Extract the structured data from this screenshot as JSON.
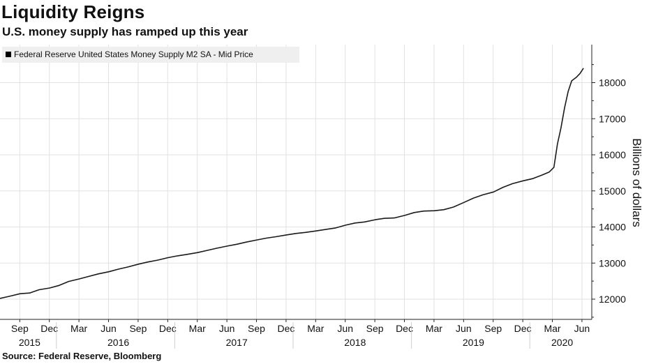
{
  "header": {
    "title": "Liquidity Reigns",
    "subtitle": "U.S. money supply has ramped up this year"
  },
  "footer": {
    "source": "Source: Federal Reserve, Bloomberg"
  },
  "colors": {
    "line": "#1a1a1a",
    "grid": "#e2e2e2",
    "axis": "#222222",
    "legend_bg": "#efefef"
  },
  "chart_data": {
    "type": "line",
    "title": "Liquidity Reigns",
    "subtitle": "U.S. money supply has ramped up this year",
    "ylabel": "Billions of dollars",
    "y_axis_position": "right",
    "ylim": [
      11500,
      19000
    ],
    "yticks": [
      12000,
      13000,
      14000,
      15000,
      16000,
      17000,
      18000
    ],
    "xlim": [
      2015.5,
      2020.5
    ],
    "x_month_ticks": [
      {
        "x": 2015.667,
        "label": "Sep"
      },
      {
        "x": 2015.917,
        "label": "Dec"
      },
      {
        "x": 2016.167,
        "label": "Mar"
      },
      {
        "x": 2016.417,
        "label": "Jun"
      },
      {
        "x": 2016.667,
        "label": "Sep"
      },
      {
        "x": 2016.917,
        "label": "Dec"
      },
      {
        "x": 2017.167,
        "label": "Mar"
      },
      {
        "x": 2017.417,
        "label": "Jun"
      },
      {
        "x": 2017.667,
        "label": "Sep"
      },
      {
        "x": 2017.917,
        "label": "Dec"
      },
      {
        "x": 2018.167,
        "label": "Mar"
      },
      {
        "x": 2018.417,
        "label": "Jun"
      },
      {
        "x": 2018.667,
        "label": "Sep"
      },
      {
        "x": 2018.917,
        "label": "Dec"
      },
      {
        "x": 2019.167,
        "label": "Mar"
      },
      {
        "x": 2019.417,
        "label": "Jun"
      },
      {
        "x": 2019.667,
        "label": "Sep"
      },
      {
        "x": 2019.917,
        "label": "Dec"
      },
      {
        "x": 2020.167,
        "label": "Mar"
      },
      {
        "x": 2020.417,
        "label": "Jun"
      }
    ],
    "x_year_labels": [
      {
        "year": "2015",
        "from": 2015.5,
        "to": 2016.0
      },
      {
        "year": "2016",
        "from": 2016.0,
        "to": 2017.0
      },
      {
        "year": "2017",
        "from": 2017.0,
        "to": 2018.0
      },
      {
        "year": "2018",
        "from": 2018.0,
        "to": 2019.0
      },
      {
        "year": "2019",
        "from": 2019.0,
        "to": 2020.0
      },
      {
        "year": "2020",
        "from": 2020.0,
        "to": 2020.5
      }
    ],
    "x_year_boundaries": [
      2016.0,
      2017.0,
      2018.0,
      2019.0,
      2020.0
    ],
    "series": [
      {
        "name": "Federal Reserve United States Money Supply M2 SA - Mid Price",
        "points": [
          [
            2015.5,
            12020
          ],
          [
            2015.58,
            12080
          ],
          [
            2015.67,
            12150
          ],
          [
            2015.75,
            12170
          ],
          [
            2015.83,
            12260
          ],
          [
            2015.92,
            12310
          ],
          [
            2016.0,
            12380
          ],
          [
            2016.08,
            12490
          ],
          [
            2016.17,
            12560
          ],
          [
            2016.25,
            12630
          ],
          [
            2016.33,
            12700
          ],
          [
            2016.42,
            12760
          ],
          [
            2016.5,
            12830
          ],
          [
            2016.58,
            12890
          ],
          [
            2016.67,
            12970
          ],
          [
            2016.75,
            13030
          ],
          [
            2016.83,
            13080
          ],
          [
            2016.92,
            13150
          ],
          [
            2017.0,
            13200
          ],
          [
            2017.08,
            13240
          ],
          [
            2017.17,
            13290
          ],
          [
            2017.25,
            13350
          ],
          [
            2017.33,
            13410
          ],
          [
            2017.42,
            13470
          ],
          [
            2017.5,
            13520
          ],
          [
            2017.58,
            13580
          ],
          [
            2017.67,
            13640
          ],
          [
            2017.75,
            13690
          ],
          [
            2017.83,
            13730
          ],
          [
            2017.92,
            13780
          ],
          [
            2018.0,
            13820
          ],
          [
            2018.08,
            13850
          ],
          [
            2018.17,
            13890
          ],
          [
            2018.25,
            13930
          ],
          [
            2018.33,
            13970
          ],
          [
            2018.42,
            14050
          ],
          [
            2018.5,
            14110
          ],
          [
            2018.58,
            14140
          ],
          [
            2018.67,
            14200
          ],
          [
            2018.75,
            14240
          ],
          [
            2018.83,
            14250
          ],
          [
            2018.92,
            14320
          ],
          [
            2019.0,
            14400
          ],
          [
            2019.08,
            14440
          ],
          [
            2019.17,
            14450
          ],
          [
            2019.25,
            14480
          ],
          [
            2019.33,
            14550
          ],
          [
            2019.42,
            14680
          ],
          [
            2019.5,
            14800
          ],
          [
            2019.58,
            14890
          ],
          [
            2019.67,
            14970
          ],
          [
            2019.75,
            15100
          ],
          [
            2019.83,
            15200
          ],
          [
            2019.92,
            15280
          ],
          [
            2020.0,
            15340
          ],
          [
            2020.08,
            15440
          ],
          [
            2020.14,
            15520
          ],
          [
            2020.18,
            15650
          ],
          [
            2020.21,
            16300
          ],
          [
            2020.24,
            16750
          ],
          [
            2020.27,
            17300
          ],
          [
            2020.3,
            17750
          ],
          [
            2020.33,
            18050
          ],
          [
            2020.37,
            18150
          ],
          [
            2020.4,
            18250
          ],
          [
            2020.43,
            18400
          ]
        ]
      }
    ],
    "legend": {
      "position": "top-left",
      "labels": [
        "Federal Reserve United States Money Supply M2 SA - Mid Price"
      ]
    },
    "grid": true
  }
}
